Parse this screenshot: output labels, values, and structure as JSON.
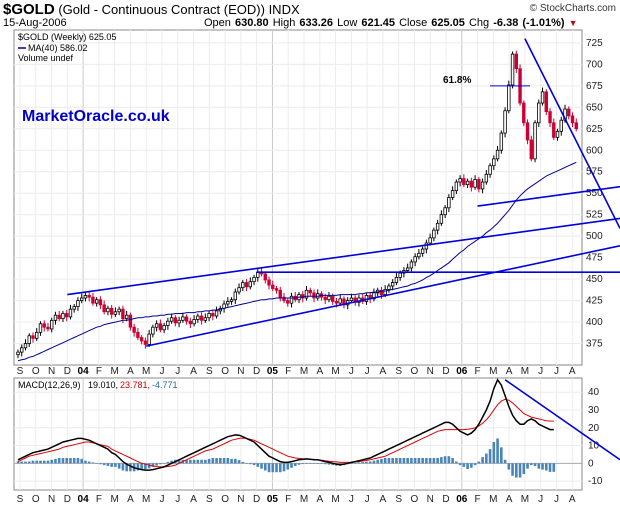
{
  "header": {
    "symbol": "$GOLD",
    "description": "(Gold - Continuous Contract (EOD))",
    "exchange": "INDX",
    "date": "15-Aug-2006",
    "open_label": "Open",
    "open": "630.80",
    "high_label": "High",
    "high": "633.26",
    "low_label": "Low",
    "low": "621.45",
    "close_label": "Close",
    "close": "625.05",
    "chg_label": "Chg",
    "chg": "-6.38 (-1.01%)",
    "source": "© StockCharts.com"
  },
  "colors": {
    "up": "#000000",
    "down": "#cc0033",
    "trendline": "#0000dd",
    "ma": "#000099",
    "macd": "#000000",
    "signal": "#dd0000",
    "histogram": "#4a84b8"
  },
  "chart_data": [
    {
      "type": "candlestick",
      "title": "$GOLD (Weekly) 625.05",
      "legend": [
        "$GOLD (Weekly) 625.05",
        "MA(40) 586.02",
        "Volume undef"
      ],
      "watermark": "MarketOracle.co.uk",
      "annotation": "61.8%",
      "ylim": [
        350,
        740
      ],
      "yticks": [
        375,
        400,
        425,
        450,
        475,
        500,
        525,
        550,
        575,
        600,
        625,
        650,
        675,
        700,
        725
      ],
      "xticks": [
        "S",
        "O",
        "N",
        "D",
        "04",
        "F",
        "M",
        "A",
        "M",
        "J",
        "J",
        "A",
        "S",
        "O",
        "N",
        "D",
        "05",
        "F",
        "M",
        "A",
        "M",
        "J",
        "J",
        "A",
        "S",
        "O",
        "N",
        "D",
        "06",
        "F",
        "M",
        "A",
        "M",
        "J",
        "J",
        "A"
      ],
      "closes": [
        365,
        370,
        375,
        384,
        381,
        388,
        398,
        394,
        392,
        402,
        408,
        404,
        410,
        406,
        415,
        418,
        425,
        428,
        431,
        429,
        422,
        426,
        420,
        412,
        416,
        409,
        412,
        415,
        404,
        408,
        394,
        388,
        382,
        378,
        374,
        386,
        394,
        398,
        391,
        396,
        401,
        405,
        399,
        402,
        406,
        401,
        398,
        403,
        407,
        402,
        405,
        410,
        407,
        413,
        416,
        421,
        424,
        426,
        435,
        440,
        446,
        441,
        447,
        452,
        458,
        456,
        449,
        443,
        439,
        437,
        429,
        425,
        422,
        430,
        426,
        432,
        428,
        437,
        434,
        428,
        433,
        429,
        426,
        430,
        424,
        422,
        427,
        420,
        425,
        428,
        423,
        428,
        424,
        431,
        427,
        434,
        437,
        432,
        438,
        442,
        446,
        452,
        457,
        460,
        463,
        470,
        476,
        480,
        485,
        492,
        498,
        507,
        515,
        525,
        533,
        545,
        553,
        563,
        567,
        560,
        564,
        557,
        566,
        555,
        563,
        572,
        582,
        590,
        600,
        620,
        646,
        676,
        712,
        695,
        655,
        632,
        612,
        590,
        632,
        655,
        668,
        645,
        632,
        615,
        622,
        635,
        648,
        640,
        632,
        625
      ],
      "ma": [
        355,
        356,
        357,
        359,
        360,
        362,
        364,
        366,
        368,
        370,
        372,
        374,
        376,
        378,
        380,
        382,
        384,
        386,
        388,
        390,
        392,
        394,
        395,
        397,
        398,
        399,
        400,
        401,
        402,
        402,
        403,
        404,
        405,
        405,
        406,
        406,
        407,
        407,
        408,
        408,
        409,
        409,
        410,
        410,
        410,
        411,
        411,
        411,
        412,
        412,
        413,
        413,
        414,
        414,
        415,
        416,
        417,
        418,
        419,
        420,
        421,
        422,
        423,
        424,
        425,
        426,
        426,
        427,
        427,
        428,
        428,
        428,
        428,
        428,
        428,
        429,
        429,
        430,
        430,
        430,
        430,
        431,
        431,
        431,
        431,
        431,
        432,
        432,
        432,
        432,
        432,
        433,
        433,
        434,
        434,
        435,
        435,
        436,
        436,
        437,
        438,
        439,
        440,
        441,
        442,
        444,
        445,
        447,
        449,
        452,
        454,
        457,
        460,
        463,
        466,
        469,
        473,
        477,
        481,
        484,
        488,
        491,
        494,
        497,
        500,
        504,
        507,
        511,
        515,
        520,
        525,
        530,
        536,
        542,
        547,
        551,
        555,
        558,
        561,
        564,
        567,
        570,
        572,
        574,
        576,
        578,
        580,
        582,
        584,
        586
      ],
      "trendlines": [
        {
          "from": [
            "2003-12",
            432
          ],
          "to": [
            "2006-08",
            513
          ]
        },
        {
          "from": [
            "2004-05",
            372
          ],
          "to": [
            "2006-08",
            477
          ]
        },
        {
          "from": [
            "2004-12",
            458
          ],
          "to": [
            "2006-08",
            458
          ]
        },
        {
          "from": [
            "2006-02",
            535
          ],
          "to": [
            "2006-08",
            550
          ]
        },
        {
          "from": [
            "2006-05",
            730
          ],
          "to": [
            "2006-08",
            620
          ]
        }
      ]
    },
    {
      "type": "macd",
      "title": "MACD(12,26,9) 19.010, 23.781, -4.771",
      "legend": [
        "MACD(12,26,9)",
        "19.010,",
        "23.781,",
        "-4.771"
      ],
      "ylim": [
        -15,
        48
      ],
      "yticks": [
        -10,
        0,
        10,
        20,
        30,
        40
      ],
      "macd": [
        2,
        3,
        4,
        5,
        6,
        6.5,
        7,
        7.5,
        8,
        9,
        10,
        11,
        12,
        12.5,
        13,
        13.5,
        14,
        14,
        13.5,
        13,
        12,
        11,
        10,
        9,
        8,
        6,
        5,
        3,
        1,
        -0.5,
        -1.5,
        -2.5,
        -3,
        -3.5,
        -3.8,
        -3.8,
        -3.5,
        -3,
        -2.5,
        -2,
        -1,
        0,
        1,
        2,
        3,
        4,
        5,
        6,
        7,
        8,
        9,
        10,
        11,
        12,
        13,
        14,
        15,
        15.5,
        16,
        15.8,
        15,
        14,
        13,
        12,
        10,
        8,
        6,
        4,
        3,
        2,
        1,
        0.5,
        0.5,
        1,
        1.5,
        2,
        2.2,
        2.5,
        2.3,
        2,
        2,
        1.5,
        1,
        0.5,
        0,
        -0.5,
        -0.8,
        -0.5,
        0,
        0.5,
        1,
        1.5,
        2,
        2.5,
        3,
        4,
        5,
        6,
        7,
        8,
        9,
        10,
        11,
        12,
        13,
        14,
        15,
        16,
        17,
        18,
        19,
        20,
        21,
        22,
        23,
        23,
        22,
        20,
        18,
        17,
        16,
        17,
        19,
        22,
        26,
        30,
        35,
        42,
        47,
        44,
        38,
        32,
        27,
        24,
        22,
        22,
        24,
        25,
        24,
        22,
        21,
        20,
        19,
        19
      ],
      "signal": [
        1,
        2,
        3,
        4,
        4.5,
        5,
        5.5,
        6,
        6.5,
        7,
        7.5,
        8,
        9,
        9.5,
        10,
        10.5,
        11,
        11.5,
        12,
        12,
        11.5,
        11,
        10.5,
        10,
        9.5,
        8,
        7,
        6,
        5,
        4,
        3,
        2,
        1,
        0,
        -0.5,
        -1,
        -1.5,
        -1.8,
        -2,
        -2,
        -1.8,
        -1.5,
        -1,
        0,
        1,
        2,
        3,
        4,
        5,
        6,
        7,
        7.5,
        8,
        9,
        10,
        11,
        12,
        13,
        13.5,
        14,
        14.2,
        14,
        13.5,
        13,
        12,
        11,
        10,
        9,
        8,
        7,
        6,
        5,
        4,
        3.5,
        3,
        2.8,
        2.6,
        2.5,
        2.3,
        2.2,
        2,
        1.8,
        1.5,
        1.2,
        1,
        0.8,
        0.6,
        0.5,
        0.5,
        0.6,
        0.8,
        1,
        1.3,
        1.6,
        2,
        2.5,
        3,
        3.5,
        4,
        5,
        6,
        7,
        8,
        9,
        10,
        11,
        12,
        13,
        14,
        15,
        16,
        17,
        18,
        18.5,
        19,
        19,
        19,
        19,
        19,
        19,
        19.2,
        19.5,
        20,
        21,
        22.5,
        24.5,
        27,
        30,
        33,
        35,
        36,
        35.5,
        34,
        32,
        30,
        28,
        27,
        26,
        25.5,
        25,
        24.5,
        24,
        23.8,
        23.781
      ],
      "histogram_scale": 1
    }
  ],
  "xlabels_bottom": [
    "S",
    "O",
    "N",
    "D",
    "04",
    "F",
    "M",
    "A",
    "M",
    "J",
    "J",
    "A",
    "S",
    "O",
    "N",
    "D",
    "05",
    "F",
    "M",
    "A",
    "M",
    "J",
    "J",
    "A",
    "S",
    "O",
    "N",
    "D",
    "06",
    "F",
    "M",
    "A",
    "M",
    "J",
    "J",
    "A"
  ]
}
